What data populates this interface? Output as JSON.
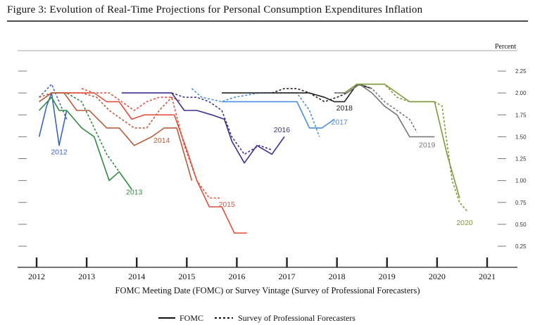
{
  "figure": {
    "title": "Figure 3: Evolution of Real-Time Projections for Personal Consumption Expenditures Inflation"
  },
  "chart_data": {
    "type": "line",
    "title": "Figure 3: Evolution of Real-Time Projections for Personal Consumption Expenditures Inflation",
    "xlabel": "FOMC Meeting Date (FOMC) or Survey Vintage (Survey of Professional Forecasters)",
    "ylabel": "Percent",
    "xlim": [
      2011.8,
      2021.2
    ],
    "ylim": [
      0.15,
      2.35
    ],
    "x_ticks": [
      2012,
      2013,
      2014,
      2015,
      2016,
      2017,
      2018,
      2019,
      2020,
      2021
    ],
    "x_tick_labels": [
      "2012",
      "2013",
      "2014",
      "2015",
      "2016",
      "2017",
      "2018",
      "2019",
      "2020",
      "2021"
    ],
    "y_ticks": [
      0.25,
      0.5,
      0.75,
      1.0,
      1.25,
      1.5,
      1.75,
      2.0,
      2.25
    ],
    "y_tick_labels": [
      "0.25",
      "0.50",
      "0.75",
      "1.00",
      "1.25",
      "1.50",
      "1.75",
      "2.00",
      "2.25"
    ],
    "grid": false,
    "legend": {
      "placement": "bottom-center",
      "entries": [
        {
          "label": "FOMC",
          "style": "solid"
        },
        {
          "label": "Survey of Professional Forecasters",
          "style": "dashed"
        }
      ]
    },
    "series": [
      {
        "name": "2012",
        "color": "#3a64c4",
        "label_pos": [
          2012.45,
          1.3
        ],
        "fomc": [
          [
            2012.05,
            1.5
          ],
          [
            2012.2,
            1.85
          ],
          [
            2012.3,
            2.0
          ],
          [
            2012.45,
            1.4
          ],
          [
            2012.6,
            1.8
          ]
        ],
        "spf": [
          [
            2012.05,
            1.95
          ],
          [
            2012.3,
            2.1
          ],
          [
            2012.45,
            1.9
          ],
          [
            2012.6,
            1.7
          ]
        ]
      },
      {
        "name": "2013",
        "color": "#2e8b3e",
        "label_pos": [
          2013.95,
          0.84
        ],
        "fomc": [
          [
            2012.05,
            1.8
          ],
          [
            2012.3,
            1.95
          ],
          [
            2012.45,
            1.8
          ],
          [
            2012.6,
            1.8
          ],
          [
            2012.9,
            1.6
          ],
          [
            2013.15,
            1.5
          ],
          [
            2013.45,
            1.0
          ],
          [
            2013.65,
            1.1
          ],
          [
            2013.9,
            0.9
          ]
        ],
        "spf": [
          [
            2012.05,
            1.9
          ],
          [
            2012.3,
            2.0
          ],
          [
            2012.6,
            2.0
          ],
          [
            2012.9,
            1.9
          ],
          [
            2013.15,
            1.6
          ],
          [
            2013.4,
            1.3
          ],
          [
            2013.65,
            1.1
          ]
        ]
      },
      {
        "name": "2014",
        "color": "#b85c3c",
        "label_pos": [
          2014.5,
          1.43
        ],
        "fomc": [
          [
            2012.05,
            1.9
          ],
          [
            2012.3,
            2.0
          ],
          [
            2012.55,
            2.0
          ],
          [
            2012.8,
            1.8
          ],
          [
            2013.05,
            1.8
          ],
          [
            2013.4,
            1.6
          ],
          [
            2013.65,
            1.6
          ],
          [
            2013.95,
            1.4
          ],
          [
            2014.3,
            1.5
          ],
          [
            2014.55,
            1.6
          ],
          [
            2014.8,
            1.6
          ],
          [
            2015.1,
            1.0
          ]
        ],
        "spf": [
          [
            2012.05,
            1.95
          ],
          [
            2012.3,
            2.0
          ],
          [
            2012.6,
            2.0
          ],
          [
            2012.9,
            2.0
          ],
          [
            2013.2,
            1.95
          ],
          [
            2013.45,
            1.8
          ],
          [
            2013.7,
            1.7
          ],
          [
            2013.95,
            1.6
          ],
          [
            2014.2,
            1.6
          ],
          [
            2014.45,
            1.8
          ],
          [
            2014.7,
            1.95
          ],
          [
            2014.9,
            1.9
          ]
        ]
      },
      {
        "name": "2015",
        "color": "#e0503c",
        "label_pos": [
          2015.8,
          0.7
        ],
        "fomc": [
          [
            2012.55,
            2.0
          ],
          [
            2013.15,
            2.0
          ],
          [
            2013.4,
            1.9
          ],
          [
            2013.65,
            1.9
          ],
          [
            2013.9,
            1.7
          ],
          [
            2014.15,
            1.75
          ],
          [
            2014.45,
            1.75
          ],
          [
            2014.75,
            1.75
          ],
          [
            2015.0,
            1.35
          ],
          [
            2015.2,
            1.0
          ],
          [
            2015.45,
            0.7
          ],
          [
            2015.7,
            0.7
          ],
          [
            2015.95,
            0.4
          ],
          [
            2016.2,
            0.4
          ]
        ],
        "spf": [
          [
            2012.9,
            2.05
          ],
          [
            2013.15,
            2.0
          ],
          [
            2013.45,
            2.0
          ],
          [
            2013.7,
            1.9
          ],
          [
            2013.95,
            1.8
          ],
          [
            2014.2,
            1.9
          ],
          [
            2014.45,
            1.95
          ],
          [
            2014.7,
            1.95
          ],
          [
            2014.95,
            1.4
          ],
          [
            2015.2,
            1.0
          ],
          [
            2015.45,
            0.8
          ],
          [
            2015.7,
            0.8
          ]
        ]
      },
      {
        "name": "2016",
        "color": "#3d2f8f",
        "label_pos": [
          2016.9,
          1.55
        ],
        "fomc": [
          [
            2013.7,
            2.0
          ],
          [
            2014.7,
            2.0
          ],
          [
            2014.95,
            1.8
          ],
          [
            2015.2,
            1.8
          ],
          [
            2015.5,
            1.75
          ],
          [
            2015.75,
            1.7
          ],
          [
            2015.9,
            1.45
          ],
          [
            2016.15,
            1.2
          ],
          [
            2016.4,
            1.4
          ],
          [
            2016.7,
            1.3
          ],
          [
            2016.95,
            1.5
          ]
        ],
        "spf": [
          [
            2014.7,
            2.0
          ],
          [
            2014.95,
            1.95
          ],
          [
            2015.2,
            1.95
          ],
          [
            2015.45,
            1.9
          ],
          [
            2015.7,
            1.8
          ],
          [
            2015.9,
            1.5
          ],
          [
            2016.15,
            1.3
          ],
          [
            2016.45,
            1.4
          ],
          [
            2016.7,
            1.35
          ]
        ]
      },
      {
        "name": "2017",
        "color": "#4b8de0",
        "label_pos": [
          2018.05,
          1.64
        ],
        "fomc": [
          [
            2015.7,
            1.9
          ],
          [
            2015.95,
            1.9
          ],
          [
            2016.45,
            1.9
          ],
          [
            2016.95,
            1.9
          ],
          [
            2017.2,
            1.9
          ],
          [
            2017.45,
            1.6
          ],
          [
            2017.7,
            1.6
          ],
          [
            2017.95,
            1.7
          ]
        ],
        "spf": [
          [
            2015.1,
            2.05
          ],
          [
            2015.3,
            1.95
          ],
          [
            2015.7,
            1.9
          ],
          [
            2015.95,
            1.95
          ],
          [
            2016.45,
            2.0
          ],
          [
            2016.95,
            2.0
          ],
          [
            2017.2,
            2.0
          ],
          [
            2017.45,
            1.8
          ],
          [
            2017.65,
            1.5
          ]
        ]
      },
      {
        "name": "2018",
        "color": "#222222",
        "label_pos": [
          2018.15,
          1.8
        ],
        "fomc": [
          [
            2015.7,
            2.0
          ],
          [
            2016.45,
            2.0
          ],
          [
            2016.95,
            2.0
          ],
          [
            2017.45,
            2.0
          ],
          [
            2017.75,
            1.95
          ],
          [
            2017.95,
            1.9
          ],
          [
            2018.15,
            1.9
          ],
          [
            2018.4,
            2.1
          ],
          [
            2018.7,
            2.05
          ]
        ],
        "spf": [
          [
            2016.7,
            2.0
          ],
          [
            2016.95,
            2.05
          ],
          [
            2017.2,
            2.05
          ],
          [
            2017.45,
            2.0
          ],
          [
            2017.75,
            1.9
          ],
          [
            2018.0,
            1.95
          ],
          [
            2018.2,
            2.0
          ],
          [
            2018.45,
            2.1
          ],
          [
            2018.7,
            2.05
          ]
        ]
      },
      {
        "name": "2019",
        "color": "#777777",
        "label_pos": [
          2019.8,
          1.38
        ],
        "fomc": [
          [
            2017.95,
            2.0
          ],
          [
            2018.2,
            2.0
          ],
          [
            2018.45,
            2.1
          ],
          [
            2018.7,
            2.0
          ],
          [
            2018.95,
            1.85
          ],
          [
            2019.2,
            1.75
          ],
          [
            2019.45,
            1.5
          ],
          [
            2019.95,
            1.5
          ]
        ],
        "spf": [
          [
            2017.95,
            2.0
          ],
          [
            2018.2,
            2.0
          ],
          [
            2018.45,
            2.1
          ],
          [
            2018.7,
            2.05
          ],
          [
            2018.95,
            1.9
          ],
          [
            2019.2,
            1.8
          ],
          [
            2019.45,
            1.7
          ],
          [
            2019.6,
            1.55
          ]
        ]
      },
      {
        "name": "2020",
        "color": "#7f9a3a",
        "label_pos": [
          2020.55,
          0.49
        ],
        "fomc": [
          [
            2018.15,
            2.0
          ],
          [
            2018.4,
            2.1
          ],
          [
            2018.95,
            2.1
          ],
          [
            2019.2,
            2.0
          ],
          [
            2019.45,
            1.9
          ],
          [
            2019.95,
            1.9
          ],
          [
            2020.2,
            1.3
          ],
          [
            2020.45,
            0.8
          ]
        ],
        "spf": [
          [
            2018.45,
            2.1
          ],
          [
            2018.95,
            2.1
          ],
          [
            2019.2,
            1.95
          ],
          [
            2019.45,
            1.9
          ],
          [
            2019.95,
            1.9
          ],
          [
            2020.1,
            1.85
          ],
          [
            2020.3,
            1.0
          ],
          [
            2020.45,
            0.75
          ],
          [
            2020.6,
            0.65
          ]
        ]
      }
    ]
  }
}
